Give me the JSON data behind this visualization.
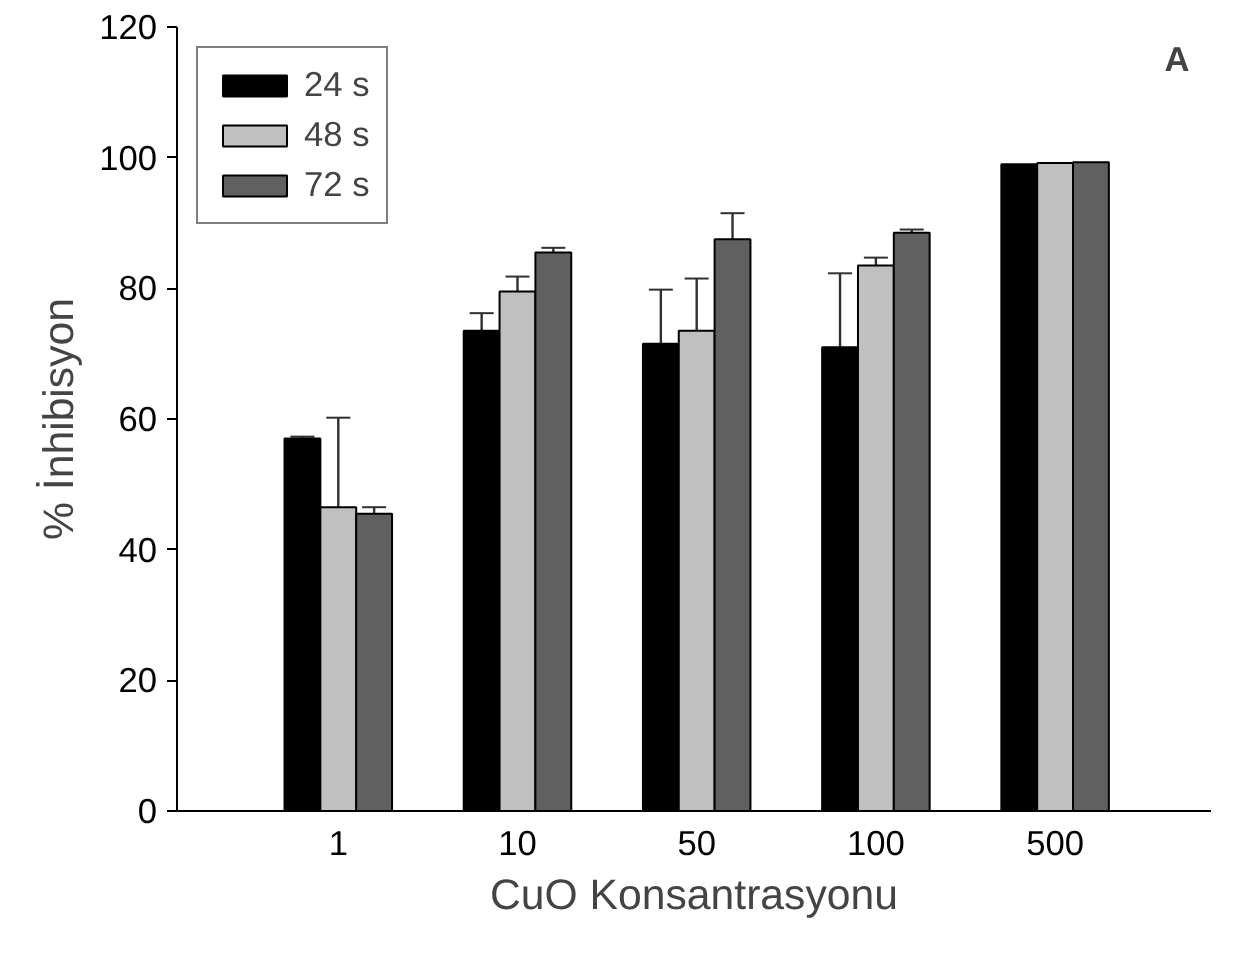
{
  "chart_data": {
    "type": "bar",
    "xlabel": "CuO Konsantrasyonu",
    "ylabel": "% İnhibisyon",
    "categories": [
      "1",
      "10",
      "50",
      "100",
      "500"
    ],
    "series": [
      {
        "name": "24 s",
        "color": "#000000",
        "values": [
          57,
          73.5,
          71.5,
          71,
          99
        ],
        "errors": [
          0.3,
          2.7,
          8.3,
          11.3,
          null
        ]
      },
      {
        "name": "48 s",
        "color": "#c0c0c0",
        "values": [
          46.5,
          79.5,
          73.5,
          83.5,
          99.2
        ],
        "errors": [
          13.7,
          2.3,
          8,
          1.2,
          null
        ]
      },
      {
        "name": "72 s",
        "color": "#606060",
        "values": [
          45.5,
          85.5,
          87.5,
          88.5,
          99.3
        ],
        "errors": [
          1,
          0.7,
          4,
          0.5,
          null
        ]
      }
    ],
    "ylim": [
      0,
      120
    ],
    "yticks": [
      0,
      20,
      40,
      60,
      80,
      100,
      120
    ],
    "grid": false,
    "legend": "top left",
    "annotations": [
      "A"
    ]
  }
}
